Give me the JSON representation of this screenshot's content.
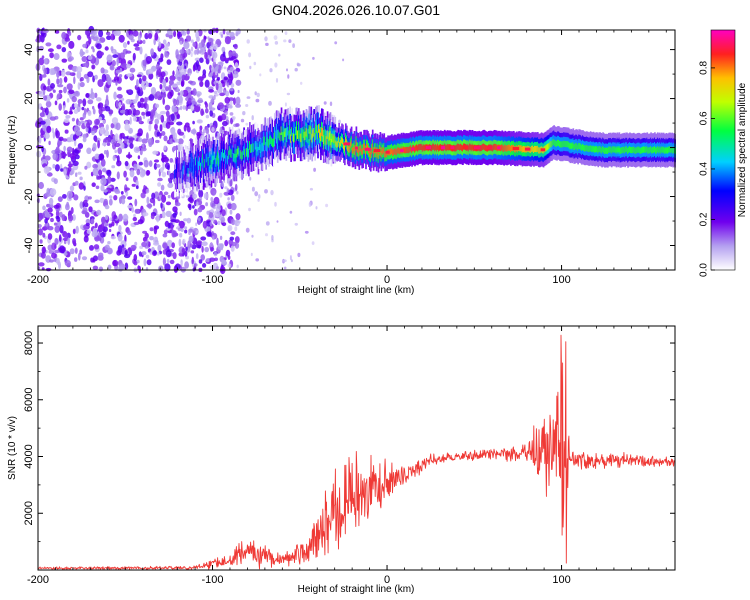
{
  "title": "GN04.2026.026.10.07.G01",
  "colors": {
    "signal_line": "#ef3a36",
    "frame": "#000000",
    "background": "#ffffff"
  },
  "chart_data": [
    {
      "type": "heatmap",
      "xlabel": "Height of straight line (km)",
      "ylabel": "Frequency (Hz)",
      "xlim": [
        -200,
        165
      ],
      "ylim": [
        -50,
        48
      ],
      "xticks": [
        -200,
        -100,
        0,
        100
      ],
      "yticks": [
        -40,
        -20,
        0,
        20,
        40
      ],
      "colorbar": {
        "label": "Normalized spectral amplitude",
        "range": [
          0.0,
          0.95
        ],
        "ticks": [
          "0.0",
          "0.2",
          "0.4",
          "0.6",
          "0.8"
        ]
      },
      "ridge": [
        {
          "x": -120,
          "f": -10,
          "amp": 0.3
        },
        {
          "x": -105,
          "f": -6,
          "amp": 0.45
        },
        {
          "x": -90,
          "f": -3,
          "amp": 0.5
        },
        {
          "x": -75,
          "f": 0,
          "amp": 0.5
        },
        {
          "x": -60,
          "f": 6,
          "amp": 0.55
        },
        {
          "x": -50,
          "f": 5,
          "amp": 0.65
        },
        {
          "x": -40,
          "f": 6,
          "amp": 0.7
        },
        {
          "x": -30,
          "f": 3,
          "amp": 0.7
        },
        {
          "x": -20,
          "f": 0,
          "amp": 0.85
        },
        {
          "x": 0,
          "f": -2,
          "amp": 0.85
        },
        {
          "x": 20,
          "f": 0,
          "amp": 0.9
        },
        {
          "x": 60,
          "f": 0,
          "amp": 0.9
        },
        {
          "x": 90,
          "f": -1,
          "amp": 0.75
        },
        {
          "x": 95,
          "f": 2,
          "amp": 0.6
        },
        {
          "x": 120,
          "f": -1,
          "amp": 0.6
        },
        {
          "x": 165,
          "f": -1,
          "amp": 0.6
        }
      ]
    },
    {
      "type": "line",
      "xlabel": "Height of straight line (km)",
      "ylabel": "SNR (10 * v/v)",
      "xlim": [
        -200,
        165
      ],
      "ylim": [
        0,
        8600
      ],
      "xticks": [
        -200,
        -100,
        0,
        100
      ],
      "yticks": [
        2000,
        4000,
        6000,
        8000
      ],
      "envelope": [
        {
          "x": -200,
          "mean": 60,
          "spread": 60
        },
        {
          "x": -110,
          "mean": 80,
          "spread": 80
        },
        {
          "x": -95,
          "mean": 300,
          "spread": 300
        },
        {
          "x": -80,
          "mean": 700,
          "spread": 600
        },
        {
          "x": -70,
          "mean": 500,
          "spread": 500
        },
        {
          "x": -60,
          "mean": 350,
          "spread": 250
        },
        {
          "x": -45,
          "mean": 700,
          "spread": 700
        },
        {
          "x": -35,
          "mean": 1800,
          "spread": 1600
        },
        {
          "x": -20,
          "mean": 2600,
          "spread": 1900
        },
        {
          "x": -10,
          "mean": 2900,
          "spread": 1300
        },
        {
          "x": 10,
          "mean": 3300,
          "spread": 500
        },
        {
          "x": 25,
          "mean": 3900,
          "spread": 200
        },
        {
          "x": 60,
          "mean": 4100,
          "spread": 200
        },
        {
          "x": 80,
          "mean": 4100,
          "spread": 400
        },
        {
          "x": 90,
          "mean": 4300,
          "spread": 1800
        },
        {
          "x": 100,
          "mean": 4500,
          "spread": 4000
        },
        {
          "x": 105,
          "mean": 3900,
          "spread": 400
        },
        {
          "x": 165,
          "mean": 3800,
          "spread": 200
        }
      ]
    }
  ]
}
